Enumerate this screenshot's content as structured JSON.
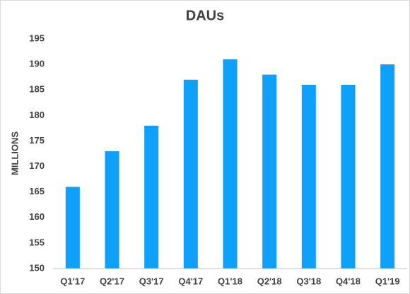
{
  "chart_data": {
    "type": "bar",
    "title": "DAUs",
    "y_label": "MILLIONS",
    "categories": [
      "Q1'17",
      "Q2'17",
      "Q3'17",
      "Q4'17",
      "Q1'18",
      "Q2'18",
      "Q3'18",
      "Q4'18",
      "Q1'19"
    ],
    "values": [
      166,
      173,
      178,
      187,
      191,
      188,
      186,
      186,
      190
    ],
    "color": "#0fa0fa",
    "ylim": [
      150,
      195
    ],
    "yticks": [
      150,
      155,
      160,
      165,
      170,
      175,
      180,
      185,
      190,
      195
    ],
    "grid": false
  }
}
